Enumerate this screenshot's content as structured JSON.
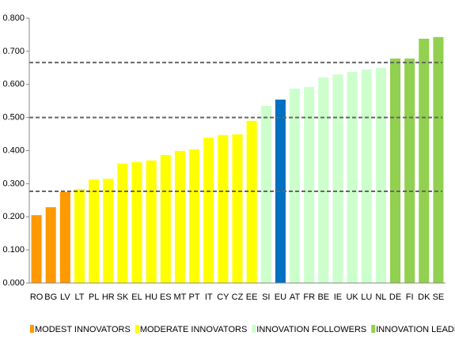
{
  "chart_data": {
    "type": "bar",
    "categories": [
      "RO",
      "BG",
      "LV",
      "LT",
      "PL",
      "HR",
      "SK",
      "EL",
      "HU",
      "ES",
      "MT",
      "PT",
      "IT",
      "CY",
      "CZ",
      "EE",
      "SI",
      "EU",
      "AT",
      "FR",
      "BE",
      "IE",
      "UK",
      "LU",
      "NL",
      "DE",
      "FI",
      "DK",
      "SE"
    ],
    "values": [
      0.205,
      0.229,
      0.275,
      0.284,
      0.313,
      0.315,
      0.361,
      0.365,
      0.37,
      0.387,
      0.399,
      0.404,
      0.439,
      0.447,
      0.449,
      0.49,
      0.535,
      0.554,
      0.587,
      0.592,
      0.621,
      0.63,
      0.638,
      0.645,
      0.65,
      0.678,
      0.678,
      0.738,
      0.743
    ],
    "colors": [
      "#FF9900",
      "#FF9900",
      "#FF9900",
      "#FFFF00",
      "#FFFF00",
      "#FFFF00",
      "#FFFF00",
      "#FFFF00",
      "#FFFF00",
      "#FFFF00",
      "#FFFF00",
      "#FFFF00",
      "#FFFF00",
      "#FFFF00",
      "#FFFF00",
      "#FFFF00",
      "#CCFFCC",
      "#0070C0",
      "#CCFFCC",
      "#CCFFCC",
      "#CCFFCC",
      "#CCFFCC",
      "#CCFFCC",
      "#CCFFCC",
      "#CCFFCC",
      "#92D050",
      "#92D050",
      "#92D050",
      "#92D050"
    ],
    "legend": [
      {
        "name": "MODEST INNOVATORS",
        "color": "#FF9900"
      },
      {
        "name": "MODERATE INNOVATORS",
        "color": "#FFFF00"
      },
      {
        "name": "INNOVATION FOLLOWERS",
        "color": "#CCFFCC"
      },
      {
        "name": "INNOVATION LEADERS",
        "color": "#92D050"
      }
    ],
    "reference_lines": [
      0.666,
      0.5,
      0.277
    ],
    "ylim": [
      0,
      0.8
    ],
    "yticks": [
      {
        "value": 0,
        "label": "0.000"
      },
      {
        "value": 0.1,
        "label": "0.100"
      },
      {
        "value": 0.2,
        "label": "0.200"
      },
      {
        "value": 0.3,
        "label": "0.300"
      },
      {
        "value": 0.4,
        "label": "0.400"
      },
      {
        "value": 0.5,
        "label": "0.500"
      },
      {
        "value": 0.6,
        "label": "0.600"
      },
      {
        "value": 0.7,
        "label": "0.700"
      },
      {
        "value": 0.8,
        "label": "0.800"
      }
    ],
    "grid": false
  }
}
